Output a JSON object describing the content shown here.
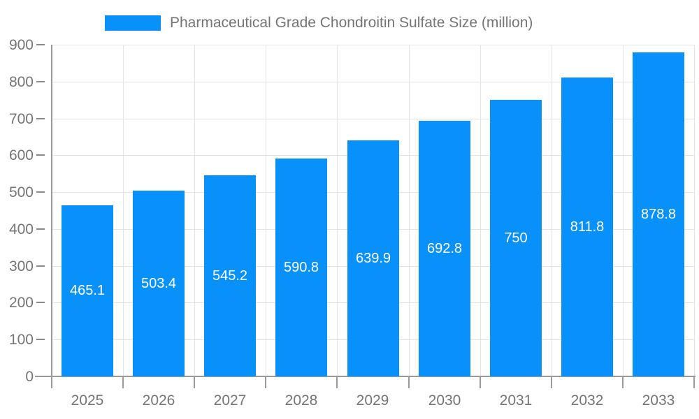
{
  "chart_data": {
    "type": "bar",
    "title": "Pharmaceutical Grade Chondroitin Sulfate Size (million)",
    "xlabel": "",
    "ylabel": "",
    "categories": [
      "2025",
      "2026",
      "2027",
      "2028",
      "2029",
      "2030",
      "2031",
      "2032",
      "2033"
    ],
    "values": [
      465.1,
      503.4,
      545.2,
      590.8,
      639.9,
      692.8,
      750,
      811.8,
      878.8
    ],
    "data_labels": [
      "465.1",
      "503.4",
      "545.2",
      "590.8",
      "639.9",
      "692.8",
      "750",
      "811.8",
      "878.8"
    ],
    "series_name": "Pharmaceutical Grade Chondroitin Sulfate Size (million)",
    "ylim": [
      0,
      900
    ],
    "yticks": [
      0,
      100,
      200,
      300,
      400,
      500,
      600,
      700,
      800,
      900
    ],
    "grid": true,
    "legend_position": "top",
    "colors": {
      "bar": "#0991fb",
      "value_label": "#ffffff",
      "axis_text": "#757575",
      "title_text": "#757575",
      "gridline": "#e3e3e3",
      "axis_line": "#9a9a9a"
    }
  }
}
